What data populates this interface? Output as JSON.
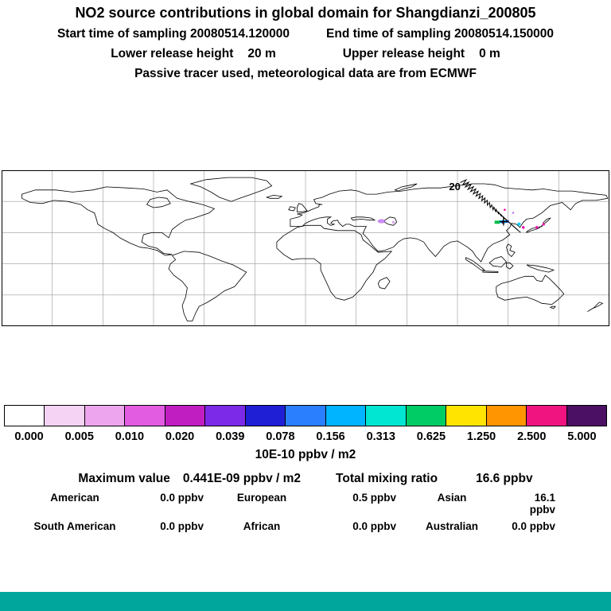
{
  "header": {
    "title": "NO2 source contributions in global domain for Shangdianzi_200805",
    "start_line": {
      "left": "Start time of sampling 20080514.120000",
      "right": "End time of sampling 20080514.150000"
    },
    "heights_line": {
      "lower_label": "Lower release height",
      "lower_value": "20 m",
      "upper_label": "Upper release height",
      "upper_value": "0 m"
    },
    "tracer_line": "Passive tracer used, meteorological data are from ECMWF"
  },
  "map": {
    "contour_label": "20",
    "hotspot_colors": {
      "cyan": "#00d0ff",
      "blue": "#2b5cff",
      "green": "#00bb44",
      "magenta": "#ee00aa",
      "purple": "#bb66ee",
      "dark": "#550066"
    }
  },
  "colorbar": {
    "colors": [
      "#ffffff",
      "#f5d3f5",
      "#eda6ed",
      "#e25ce2",
      "#c01ec0",
      "#7d2ae8",
      "#1f1fd6",
      "#2a7fff",
      "#00b4ff",
      "#00e6d2",
      "#00cc66",
      "#ffe400",
      "#ff9500",
      "#f01480",
      "#4b0f63"
    ],
    "tick_labels": [
      "0.000",
      "0.005",
      "0.010",
      "0.020",
      "0.039",
      "0.078",
      "0.156",
      "0.313",
      "0.625",
      "1.250",
      "2.500",
      "5.000"
    ],
    "unit_label": "10E-10 ppbv / m2"
  },
  "stats": {
    "max_label": "Maximum value",
    "max_value": "0.441E-09 ppbv / m2",
    "total_label": "Total mixing ratio",
    "total_value": "16.6 ppbv",
    "contributions": [
      {
        "label": "American",
        "value": "0.0 ppbv"
      },
      {
        "label": "European",
        "value": "0.5 ppbv"
      },
      {
        "label": "Asian",
        "value": "16.1 ppbv"
      },
      {
        "label": "South American",
        "value": "0.0 ppbv"
      },
      {
        "label": "African",
        "value": "0.0 ppbv"
      },
      {
        "label": "Australian",
        "value": "0.0 ppbv"
      }
    ]
  },
  "footer": {
    "bar_color": "#00a59b"
  },
  "chart_data": {
    "type": "heatmap",
    "title": "NO2 source contributions in global domain for Shangdianzi_200805",
    "station": "Shangdianzi_200805",
    "sampling_start": "20080514.120000",
    "sampling_end": "20080514.150000",
    "lower_release_height_m": 20,
    "upper_release_height_m": 0,
    "meteorology": "ECMWF",
    "tracer": "Passive tracer",
    "colorbar_ticks": [
      0.0,
      0.005,
      0.01,
      0.02,
      0.039,
      0.078,
      0.156,
      0.313,
      0.625,
      1.25,
      2.5,
      5.0
    ],
    "colorbar_unit": "10E-10 ppbv / m2",
    "maximum_value": "0.441E-09 ppbv / m2",
    "total_mixing_ratio_ppbv": 16.6,
    "contour_label_value": 20,
    "map_extent": {
      "lon": [
        -180,
        180
      ],
      "lat": [
        -60,
        90
      ],
      "grid_spacing_deg": 30
    },
    "contributions_ppbv": {
      "American": 0.0,
      "European": 0.5,
      "Asian": 16.1,
      "South American": 0.0,
      "African": 0.0,
      "Australian": 0.0
    }
  }
}
